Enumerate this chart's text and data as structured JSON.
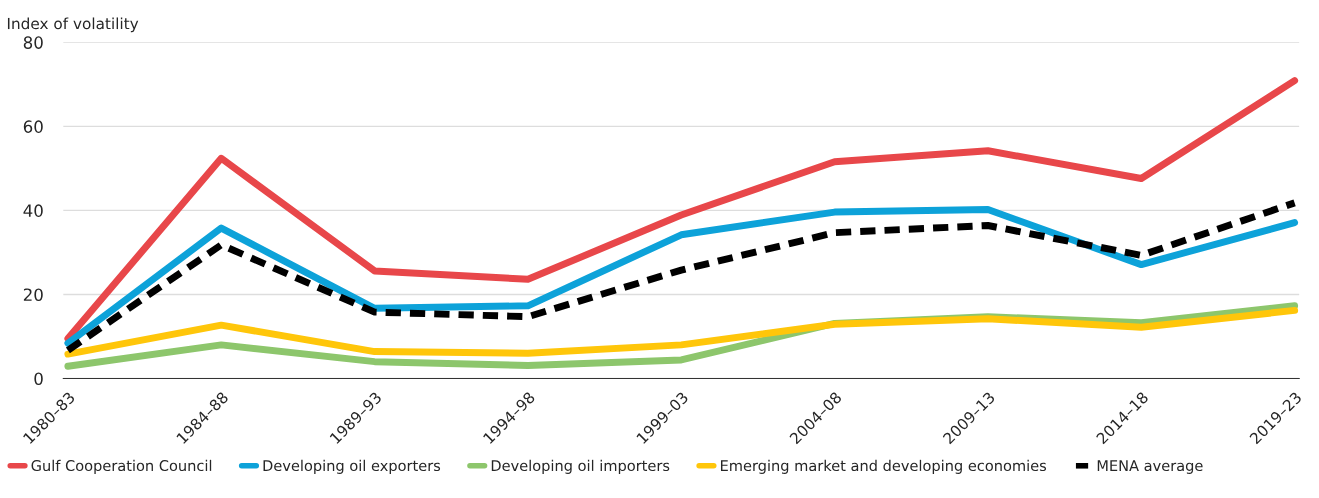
{
  "chart_data": {
    "type": "line",
    "ylabel": "Index of volatility",
    "categories": [
      "1980–83",
      "1984–88",
      "1989–93",
      "1994–98",
      "1999–03",
      "2004–08",
      "2009–13",
      "2014–18",
      "2019–23"
    ],
    "series": [
      {
        "name": "Gulf Cooperation Council",
        "color": "#e8474a",
        "values": [
          9.5,
          52.4,
          25.6,
          23.6,
          38.9,
          51.6,
          54.2,
          47.6,
          70.9
        ]
      },
      {
        "name": "Developing oil exporters",
        "color": "#0da2d9",
        "values": [
          8.4,
          35.8,
          16.7,
          17.3,
          34.2,
          39.6,
          40.2,
          27.1,
          37.1
        ]
      },
      {
        "name": "Developing oil importers",
        "color": "#8dc66c",
        "values": [
          2.9,
          8.0,
          4.0,
          3.1,
          4.4,
          13.1,
          14.7,
          13.3,
          17.3
        ]
      },
      {
        "name": "Emerging market and developing economies",
        "color": "#ffc60a",
        "values": [
          5.8,
          12.7,
          6.4,
          6.0,
          8.0,
          12.9,
          14.2,
          12.2,
          16.2
        ]
      },
      {
        "name": "MENA average",
        "color": "#000000",
        "line_style": "dashed",
        "values": [
          6.7,
          31.8,
          15.8,
          14.7,
          25.8,
          34.7,
          36.4,
          29.3,
          41.8
        ]
      }
    ],
    "ylim": [
      0,
      80
    ],
    "yticks": [
      0,
      20,
      40,
      60,
      80
    ],
    "grid": "y",
    "legend": "bottom"
  }
}
